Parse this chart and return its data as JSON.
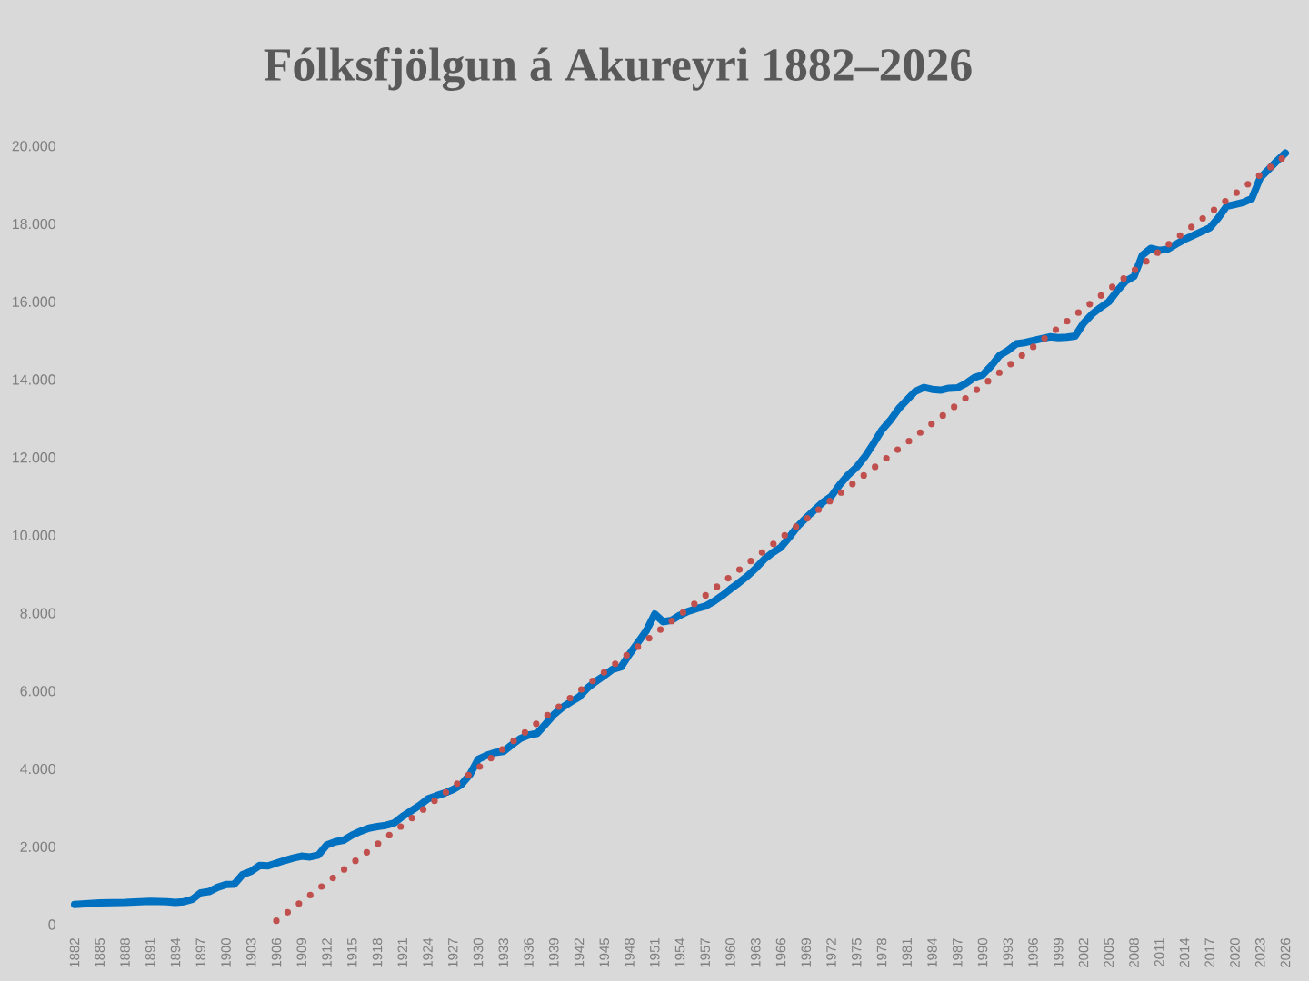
{
  "chart_data": {
    "type": "line",
    "title": "Fólksfjölgun á Akureyri 1882–2026",
    "xlim": [
      1882,
      2026
    ],
    "xticks": [
      1882,
      1885,
      1888,
      1891,
      1894,
      1897,
      1900,
      1903,
      1906,
      1909,
      1912,
      1915,
      1918,
      1921,
      1924,
      1927,
      1930,
      1933,
      1936,
      1939,
      1942,
      1945,
      1948,
      1951,
      1954,
      1957,
      1960,
      1963,
      1966,
      1969,
      1972,
      1975,
      1978,
      1981,
      1984,
      1987,
      1990,
      1993,
      1996,
      1999,
      2002,
      2005,
      2008,
      2011,
      2014,
      2017,
      2020,
      2023,
      2026
    ],
    "ylim": [
      0,
      20000
    ],
    "yticks": [
      0,
      {
        "value": 2000,
        "label": "2.000"
      },
      {
        "value": 4000,
        "label": "4.000"
      },
      {
        "value": 6000,
        "label": "6.000"
      },
      {
        "value": 8000,
        "label": "8.000"
      },
      {
        "value": 10000,
        "label": "10.000"
      },
      {
        "value": 12000,
        "label": "12.000"
      },
      {
        "value": 14000,
        "label": "14.000"
      },
      {
        "value": 16000,
        "label": "16.000"
      },
      {
        "value": 18000,
        "label": "18.000"
      },
      {
        "value": 20000,
        "label": "20.000"
      }
    ],
    "series": [
      {
        "color": "#0070c0",
        "line_style": "solid",
        "x": [
          1882,
          1885,
          1888,
          1891,
          1893,
          1894,
          1895,
          1896,
          1897,
          1898,
          1899,
          1900,
          1901,
          1902,
          1903,
          1904,
          1905,
          1906,
          1907,
          1908,
          1909,
          1910,
          1911,
          1912,
          1913,
          1914,
          1915,
          1916,
          1917,
          1918,
          1919,
          1920,
          1921,
          1922,
          1923,
          1924,
          1925,
          1926,
          1927,
          1928,
          1929,
          1930,
          1931,
          1932,
          1933,
          1934,
          1935,
          1936,
          1937,
          1938,
          1939,
          1940,
          1941,
          1942,
          1943,
          1944,
          1945,
          1946,
          1947,
          1948,
          1949,
          1950,
          1951,
          1952,
          1953,
          1954,
          1955,
          1956,
          1957,
          1958,
          1959,
          1960,
          1961,
          1962,
          1963,
          1964,
          1965,
          1966,
          1967,
          1968,
          1969,
          1970,
          1971,
          1972,
          1973,
          1974,
          1975,
          1976,
          1977,
          1978,
          1979,
          1980,
          1981,
          1982,
          1983,
          1984,
          1985,
          1986,
          1987,
          1988,
          1989,
          1990,
          1991,
          1992,
          1993,
          1994,
          1995,
          1996,
          1997,
          1998,
          1999,
          2000,
          2001,
          2002,
          2003,
          2004,
          2005,
          2006,
          2007,
          2008,
          2009,
          2010,
          2011,
          2012,
          2013,
          2014,
          2015,
          2016,
          2017,
          2018,
          2019,
          2020,
          2021,
          2022,
          2023,
          2024,
          2025,
          2026
        ],
        "values": [
          520,
          560,
          570,
          600,
          590,
          570,
          590,
          650,
          820,
          850,
          960,
          1030,
          1040,
          1290,
          1370,
          1520,
          1510,
          1580,
          1650,
          1710,
          1760,
          1740,
          1790,
          2050,
          2130,
          2170,
          2300,
          2400,
          2480,
          2520,
          2550,
          2610,
          2780,
          2920,
          3060,
          3230,
          3310,
          3380,
          3470,
          3600,
          3850,
          4250,
          4350,
          4420,
          4450,
          4620,
          4780,
          4870,
          4910,
          5150,
          5400,
          5580,
          5720,
          5850,
          6080,
          6250,
          6400,
          6560,
          6620,
          6950,
          7250,
          7550,
          7980,
          7780,
          7820,
          7950,
          8050,
          8120,
          8180,
          8300,
          8450,
          8620,
          8780,
          8950,
          9150,
          9380,
          9550,
          9690,
          9950,
          10230,
          10450,
          10650,
          10850,
          11000,
          11300,
          11550,
          11750,
          12020,
          12350,
          12700,
          12950,
          13250,
          13480,
          13700,
          13800,
          13750,
          13730,
          13780,
          13790,
          13900,
          14050,
          14120,
          14350,
          14620,
          14750,
          14920,
          14950,
          15000,
          15050,
          15100,
          15080,
          15090,
          15120,
          15450,
          15680,
          15850,
          16000,
          16280,
          16530,
          16650,
          17200,
          17370,
          17320,
          17350,
          17480,
          17600,
          17700,
          17800,
          17900,
          18150,
          18450,
          18500,
          18550,
          18650,
          19180,
          19400,
          19620,
          19820
        ]
      },
      {
        "type": "line",
        "color": "#c0504d",
        "line_style": "dotted",
        "x": [
          1906,
          2026
        ],
        "values": [
          100,
          19750
        ]
      }
    ]
  }
}
